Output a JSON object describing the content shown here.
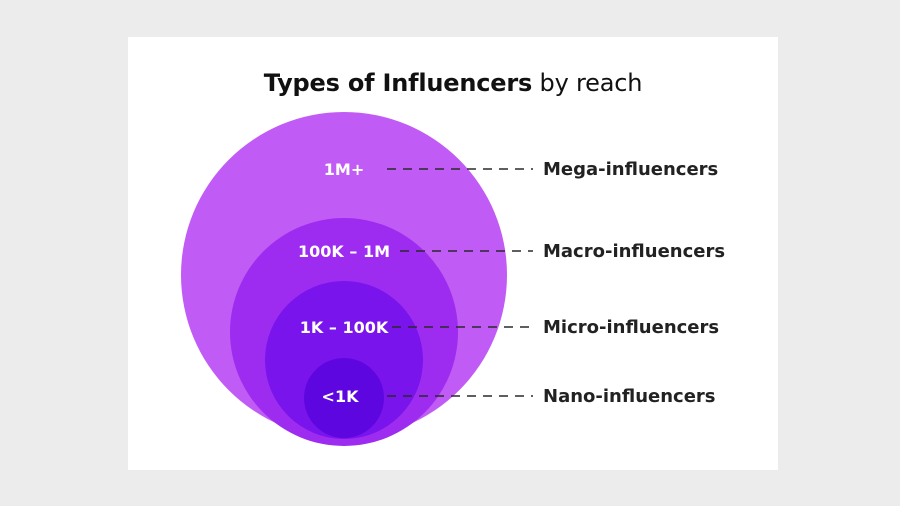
{
  "title": {
    "bold_part": "Types of Influencers",
    "light_part": "by reach"
  },
  "tiers": [
    {
      "range": "1M+",
      "name": "Mega-influencers",
      "color": "#c15bf5"
    },
    {
      "range": "100K – 1M",
      "name": "Macro-influencers",
      "color": "#9d2cf0"
    },
    {
      "range": "1K – 100K",
      "name": "Micro-influencers",
      "color": "#7a14ec"
    },
    {
      "range": "<1K",
      "name": "Nano-influencers",
      "color": "#5e06e0"
    }
  ]
}
